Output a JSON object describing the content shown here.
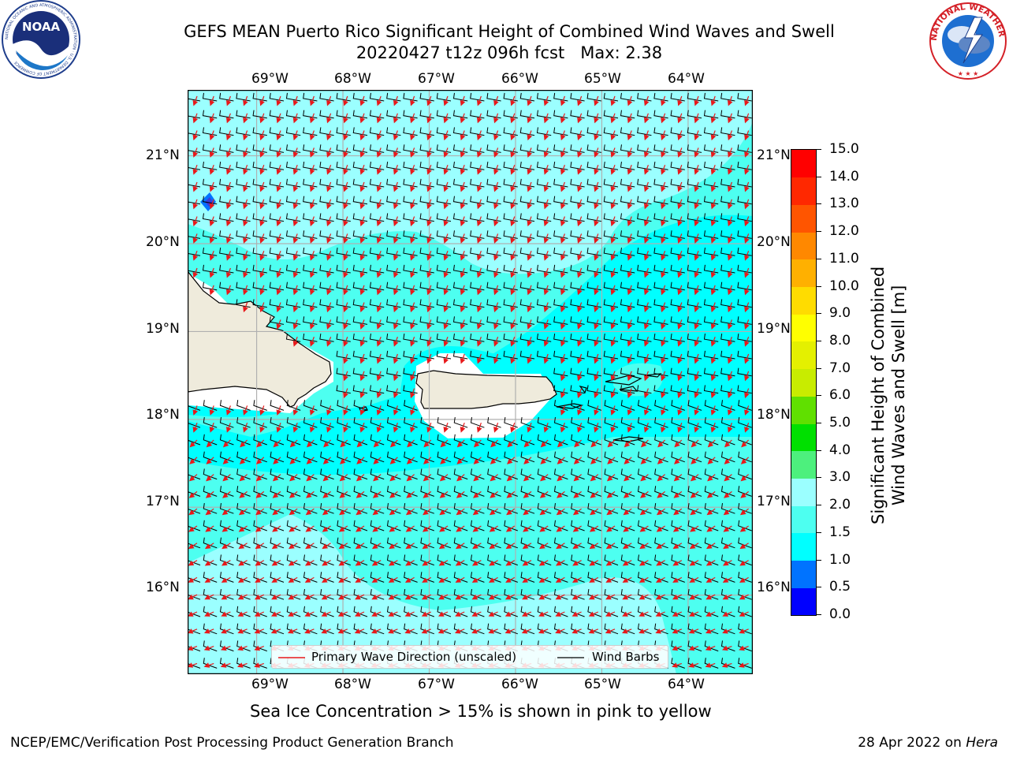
{
  "title": {
    "line1": "GEFS MEAN Puerto Rico Significant Height of Combined Wind Waves and Swell",
    "line2": "20220427 t12z 096h fcst   Max: 2.38"
  },
  "logos": {
    "left": {
      "text": "NOAA",
      "ring_text": "NATIONAL OCEANIC AND ATMOSPHERIC ADMINISTRATION · U.S. DEPARTMENT OF COMMERCE"
    },
    "right": {
      "ring_text": "NATIONAL WEATHER SERVICE"
    }
  },
  "map": {
    "lon_labels": [
      "69°W",
      "68°W",
      "67°W",
      "66°W",
      "65°W",
      "64°W"
    ],
    "lat_labels": [
      "21°N",
      "20°N",
      "19°N",
      "18°N",
      "17°N",
      "16°N"
    ],
    "lon_range": [
      -69.8,
      -63.25
    ],
    "lat_range": [
      15.1,
      21.75
    ],
    "ocean_color_low": "#00ffff",
    "ocean_color_mid": "#9bffff",
    "land_color": "#efebdc",
    "arrow_color": "#e8191b",
    "barb_color": "#000000"
  },
  "legend": {
    "wave_label": "Primary Wave Direction (unscaled)",
    "barb_label": "Wind Barbs"
  },
  "colorbar": {
    "levels": [
      "0.0",
      "0.5",
      "1.0",
      "1.5",
      "2.0",
      "3.0",
      "4.0",
      "5.0",
      "6.0",
      "7.0",
      "8.0",
      "9.0",
      "10.0",
      "11.0",
      "12.0",
      "13.0",
      "14.0",
      "15.0"
    ],
    "colors": [
      "#0000ff",
      "#0073ff",
      "#00ffff",
      "#4dfff0",
      "#9bffff",
      "#4df07d",
      "#00e000",
      "#60e000",
      "#c8ec00",
      "#e4f000",
      "#ffff00",
      "#ffdc00",
      "#ffb000",
      "#ff8800",
      "#ff5500",
      "#ff2800",
      "#ff0000"
    ],
    "label_line1": "Significant Height of Combined",
    "label_line2": "Wind Waves and Swell [m]"
  },
  "caption": "Sea Ice Concentration > 15% is shown in pink to yellow",
  "footer": {
    "left": "NCEP/EMC/Verification Post Processing Product Generation Branch",
    "date": "28 Apr 2022 on ",
    "machine": "Hera"
  }
}
